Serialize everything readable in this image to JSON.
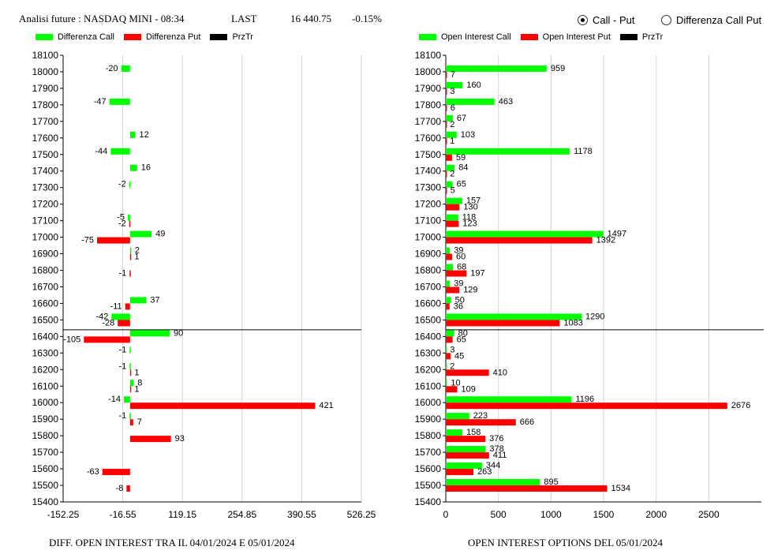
{
  "header": {
    "title": "Analisi future : NASDAQ MINI - 08:34",
    "last_label": "LAST",
    "last_value": "16 440.75",
    "change": "-0.15%"
  },
  "options": {
    "call_put": "Call - Put",
    "difference": "Differenza Call Put",
    "selected": "Call - Put"
  },
  "legend_left": {
    "call": "Differenza Call",
    "put": "Differenza Put",
    "price": "PrzTr"
  },
  "legend_right": {
    "call": "Open Interest Call",
    "put": "Open Interest Put",
    "price": "PrzTr"
  },
  "colors": {
    "call": "#00ff00",
    "put": "#ff0000",
    "price": "#000000",
    "grid": "#d3d3d3"
  },
  "captions": {
    "left": "DIFF. OPEN INTEREST TRA IL 04/01/2024 E 05/01/2024",
    "right": "OPEN INTEREST OPTIONS DEL 05/01/2024"
  },
  "chart_data": [
    {
      "type": "bar",
      "orientation": "horizontal",
      "categories": [
        18000,
        17900,
        17800,
        17700,
        17600,
        17500,
        17400,
        17300,
        17200,
        17100,
        17000,
        16900,
        16800,
        16700,
        16600,
        16500,
        16400,
        16300,
        16200,
        16100,
        16000,
        15900,
        15800,
        15700,
        15600,
        15500
      ],
      "series": [
        {
          "name": "Differenza Call",
          "values": [
            -20,
            null,
            -47,
            null,
            12,
            -44,
            16,
            -2,
            null,
            -5,
            49,
            2,
            null,
            null,
            37,
            -42,
            90,
            -1,
            -1,
            8,
            -14,
            -1,
            null,
            null,
            null,
            null
          ]
        },
        {
          "name": "Differenza Put",
          "values": [
            null,
            null,
            null,
            null,
            null,
            null,
            null,
            null,
            null,
            -2,
            -75,
            1,
            -1,
            null,
            -11,
            -28,
            -105,
            null,
            1,
            1,
            421,
            7,
            93,
            null,
            -63,
            -8
          ]
        }
      ],
      "price_line": 16440.75,
      "y_ticks": [
        18100,
        18000,
        17900,
        17800,
        17700,
        17600,
        17500,
        17400,
        17300,
        17200,
        17100,
        17000,
        16900,
        16800,
        16700,
        16600,
        16500,
        16400,
        16300,
        16200,
        16100,
        16000,
        15900,
        15800,
        15700,
        15600,
        15500,
        15400
      ],
      "x_ticks": [
        "-152.25",
        "-16.55",
        "119.15",
        "254.85",
        "390.55",
        "526.25"
      ],
      "xlim": [
        -152.25,
        526.25
      ],
      "ylim": [
        15400,
        18100
      ],
      "grid": true
    },
    {
      "type": "bar",
      "orientation": "horizontal",
      "categories": [
        18000,
        17900,
        17800,
        17700,
        17600,
        17500,
        17400,
        17300,
        17200,
        17100,
        17000,
        16900,
        16800,
        16700,
        16600,
        16500,
        16400,
        16300,
        16200,
        16100,
        16000,
        15900,
        15800,
        15700,
        15600,
        15500
      ],
      "series": [
        {
          "name": "Open Interest Call",
          "values": [
            959,
            160,
            463,
            67,
            103,
            1178,
            84,
            65,
            157,
            118,
            1497,
            39,
            68,
            39,
            50,
            1290,
            80,
            3,
            2,
            10,
            1196,
            223,
            158,
            378,
            344,
            895
          ]
        },
        {
          "name": "Open Interest Put",
          "values": [
            7,
            3,
            6,
            2,
            1,
            59,
            2,
            5,
            130,
            123,
            1392,
            60,
            197,
            129,
            36,
            1083,
            65,
            45,
            410,
            109,
            2676,
            666,
            376,
            411,
            263,
            1534
          ]
        }
      ],
      "price_line": 16440.75,
      "y_ticks": [
        18100,
        18000,
        17900,
        17800,
        17700,
        17600,
        17500,
        17400,
        17300,
        17200,
        17100,
        17000,
        16900,
        16800,
        16700,
        16600,
        16500,
        16400,
        16300,
        16200,
        16100,
        16000,
        15900,
        15800,
        15700,
        15600,
        15500,
        15400
      ],
      "x_ticks": [
        "0",
        "500",
        "1000",
        "1500",
        "2000",
        "2500"
      ],
      "xlim": [
        0,
        3000
      ],
      "ylim": [
        15400,
        18100
      ],
      "grid": true
    }
  ]
}
